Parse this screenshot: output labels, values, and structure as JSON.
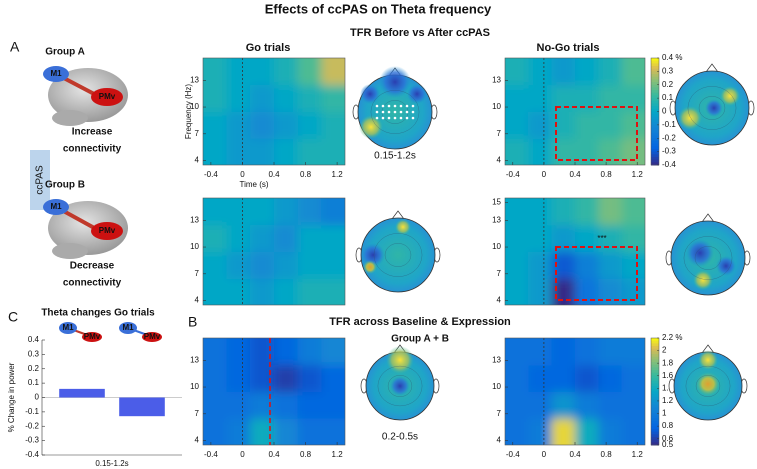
{
  "title": "Effects of ccPAS on Theta frequency",
  "panel_a": {
    "letter": "A",
    "heading": "TFR Before vs After ccPAS",
    "go": "Go trials",
    "nogo": "No-Go trials",
    "condition": "ccPAS",
    "topo_window": "0.15-1.2s",
    "stars": "***",
    "group_a": {
      "name": "Group A",
      "m1": "M1",
      "pmv": "PMv",
      "effect": [
        "Increase",
        "connectivity"
      ]
    },
    "group_b": {
      "name": "Group B",
      "m1": "M1",
      "pmv": "PMv",
      "effect": [
        "Decrease",
        "connectivity"
      ]
    }
  },
  "panel_b": {
    "letter": "B",
    "heading": "TFR across Baseline & Expression",
    "subheading": "Group A + B",
    "topo_window": "0.2-0.5s"
  },
  "panel_c": {
    "letter": "C"
  },
  "chart_data": [
    {
      "type": "heatmap",
      "x": [
        -0.35,
        -0.05,
        0.25,
        0.55,
        0.85,
        1.15
      ],
      "y": [
        5,
        8,
        11,
        14
      ],
      "z": [
        [
          0,
          -0.05,
          -0.05,
          0,
          0.05,
          0.05
        ],
        [
          0,
          -0.05,
          -0.1,
          -0.05,
          0,
          0.05
        ],
        [
          0.05,
          0,
          -0.05,
          0,
          0.05,
          0.1
        ],
        [
          0.05,
          0,
          0,
          0.05,
          0.15,
          0.3
        ]
      ],
      "xlim": [
        -0.5,
        1.3
      ],
      "ylim": [
        3.5,
        15.5
      ],
      "clim": [
        -0.4,
        0.4
      ],
      "xticks": [
        -0.4,
        0,
        0.4,
        0.8,
        1.2
      ],
      "yticks": [
        4,
        7,
        10,
        13
      ],
      "xlabel": "Time (s)",
      "ylabel": "Frequency (Hz)"
    },
    {
      "type": "heatmap",
      "x": [
        -0.35,
        -0.05,
        0.25,
        0.55,
        0.85,
        1.15
      ],
      "y": [
        5,
        8,
        11,
        14
      ],
      "z": [
        [
          0.05,
          0,
          0.1,
          0.1,
          0.15,
          0.2
        ],
        [
          0,
          -0.05,
          0.05,
          0.1,
          0.1,
          0.15
        ],
        [
          0,
          0,
          0.05,
          0.05,
          0.1,
          0.1
        ],
        [
          0.05,
          0,
          -0.05,
          0,
          0.05,
          0.15
        ]
      ],
      "xlim": [
        -0.5,
        1.3
      ],
      "ylim": [
        3.5,
        15.5
      ],
      "clim": [
        -0.4,
        0.4
      ],
      "xticks": [
        -0.4,
        0,
        0.4,
        0.8,
        1.2
      ],
      "yticks": [
        4,
        7,
        10,
        13
      ],
      "cbar_ticks": [
        {
          "value": 0.4,
          "label": "0.4 %"
        },
        0.3,
        0.2,
        0.1,
        0,
        -0.1,
        -0.2,
        -0.3,
        -0.4
      ]
    },
    {
      "type": "heatmap",
      "x": [
        -0.35,
        -0.05,
        0.25,
        0.55,
        0.85,
        1.15
      ],
      "y": [
        5,
        8,
        11,
        14
      ],
      "z": [
        [
          0,
          0,
          -0.05,
          0,
          0.05,
          0.05
        ],
        [
          0,
          -0.05,
          -0.1,
          -0.05,
          0,
          0
        ],
        [
          0.05,
          0,
          -0.05,
          -0.1,
          0,
          0
        ],
        [
          0,
          0,
          0,
          -0.05,
          -0.1,
          -0.15
        ]
      ],
      "xlim": [
        -0.5,
        1.3
      ],
      "ylim": [
        3.5,
        15.5
      ],
      "clim": [
        -0.4,
        0.4
      ],
      "yticks": [
        4,
        7,
        10,
        13
      ]
    },
    {
      "type": "heatmap",
      "x": [
        -0.35,
        -0.05,
        0.25,
        0.55,
        0.85,
        1.15
      ],
      "y": [
        5,
        8,
        11,
        14
      ],
      "z": [
        [
          0,
          -0.05,
          -0.4,
          -0.2,
          -0.1,
          -0.05
        ],
        [
          0,
          -0.05,
          -0.3,
          -0.15,
          -0.05,
          0
        ],
        [
          0,
          0,
          -0.05,
          0,
          0.05,
          0.1
        ],
        [
          0,
          0,
          0.05,
          0.1,
          0.2,
          0.15
        ]
      ],
      "xlim": [
        -0.5,
        1.3
      ],
      "ylim": [
        3.5,
        15.5
      ],
      "clim": [
        -0.4,
        0.4
      ],
      "yticks": [
        4,
        7,
        10,
        13,
        15
      ]
    },
    {
      "type": "heatmap",
      "x": [
        -0.35,
        -0.05,
        0.25,
        0.55,
        0.85,
        1.15
      ],
      "y": [
        5,
        8,
        11,
        14
      ],
      "z": [
        [
          0.9,
          1.0,
          1.4,
          1.1,
          0.9,
          0.9
        ],
        [
          0.9,
          0.9,
          1.0,
          0.9,
          0.8,
          0.8
        ],
        [
          0.9,
          0.8,
          0.7,
          0.6,
          0.7,
          0.8
        ],
        [
          0.9,
          0.8,
          0.7,
          0.8,
          1.0,
          1.1
        ]
      ],
      "xlim": [
        -0.5,
        1.3
      ],
      "ylim": [
        3.5,
        15.5
      ],
      "clim": [
        0.5,
        2.2
      ],
      "xticks": [
        -0.4,
        0,
        0.4,
        0.8,
        1.2
      ],
      "yticks": [
        4,
        7,
        10,
        13
      ]
    },
    {
      "type": "heatmap",
      "x": [
        -0.35,
        -0.05,
        0.25,
        0.55,
        0.85,
        1.15
      ],
      "y": [
        5,
        8,
        11,
        14
      ],
      "z": [
        [
          0.9,
          1.0,
          2.1,
          1.4,
          1.0,
          0.9
        ],
        [
          0.9,
          0.9,
          1.2,
          1.0,
          0.9,
          0.9
        ],
        [
          0.9,
          0.8,
          0.8,
          0.7,
          0.8,
          0.9
        ],
        [
          0.9,
          0.9,
          0.8,
          0.9,
          1.0,
          1.0
        ]
      ],
      "xlim": [
        -0.5,
        1.3
      ],
      "ylim": [
        3.5,
        15.5
      ],
      "clim": [
        0.5,
        2.2
      ],
      "xticks": [
        -0.4,
        0,
        0.4,
        0.8,
        1.2
      ],
      "yticks": [
        4,
        7,
        10,
        13
      ],
      "cbar_ticks": [
        {
          "value": 2.2,
          "label": "2.2 %"
        },
        2,
        1.8,
        1.6,
        1.4,
        1.2,
        1,
        0.8,
        0.6,
        0.5
      ]
    },
    {
      "type": "bar",
      "title": "Theta changes Go trials",
      "ylabel": "% Change in power",
      "xlabel": "0.15-1.2s",
      "categories": [
        null,
        null
      ],
      "values": [
        0.06,
        -0.13
      ],
      "color": "#4b5de8",
      "icons": [
        {
          "from": "M1",
          "to": "PMv"
        },
        {
          "from": "M1",
          "to": "PMv"
        }
      ],
      "ylim": [
        -0.4,
        0.4
      ],
      "yticks": [
        0.4,
        0.3,
        0.2,
        0.1,
        0,
        -0.1,
        -0.2,
        -0.3,
        -0.4
      ]
    }
  ]
}
